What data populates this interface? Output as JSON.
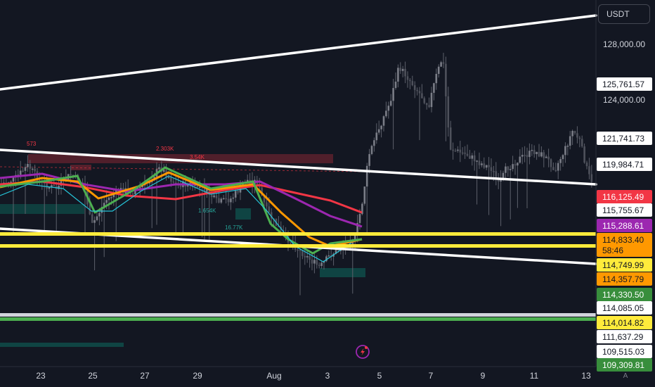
{
  "toolbar": {
    "currency_button": "USDT",
    "auto_scale": "A"
  },
  "chart_data": {
    "type": "line",
    "title": "",
    "xlabel": "",
    "ylabel": "",
    "x_tick_labels": [
      "23",
      "25",
      "27",
      "29",
      "Aug",
      "3",
      "5",
      "7",
      "9",
      "11",
      "13"
    ],
    "y_tick_labels": [
      "128,000.00",
      "124,000.00"
    ],
    "price_labels": [
      {
        "value": "125,761.57",
        "style": "white"
      },
      {
        "value": "121,741.73",
        "style": "white"
      },
      {
        "value": "119,984.71",
        "style": "white"
      },
      {
        "value": "116,125.49",
        "style": "red"
      },
      {
        "value": "115,755.67",
        "style": "white"
      },
      {
        "value": "115,288.61",
        "style": "purple"
      },
      {
        "value": "114,833.40",
        "style": "orange",
        "sub": "58:46"
      },
      {
        "value": "114,749.99",
        "style": "yellow"
      },
      {
        "value": "114,357.79",
        "style": "orange"
      },
      {
        "value": "114,330.50",
        "style": "green"
      },
      {
        "value": "114,085.05",
        "style": "white"
      },
      {
        "value": "114,014.82",
        "style": "yellow"
      },
      {
        "value": "111,637.29",
        "style": "white"
      },
      {
        "value": "109,515.03",
        "style": "white"
      },
      {
        "value": "109,309.81",
        "style": "green"
      }
    ],
    "annotations": [
      "573",
      "2.303K",
      "3.54K",
      "1.654K",
      "16.77K"
    ],
    "grid": false,
    "colors": {
      "background": "#131722",
      "candles": "#5d606b",
      "trendlines": "#ffffff",
      "ema_fast": "#4caf50",
      "ema_mid": "#ff9800",
      "ema_slow": "#9c27b0",
      "ema_long": "#f23645",
      "level_yellow": "#ffeb3b",
      "level_green": "#4caf50",
      "zone_red": "#f23645",
      "zone_teal": "#089981"
    }
  }
}
